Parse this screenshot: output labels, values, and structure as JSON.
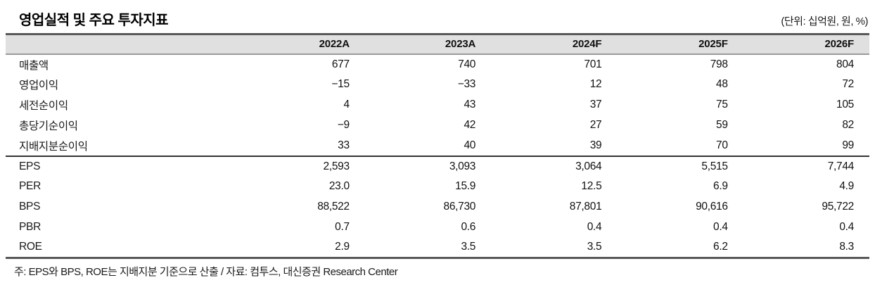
{
  "header": {
    "title": "영업실적 및 주요 투자지표",
    "unit_note": "(단위: 십억원, 원, %)"
  },
  "table": {
    "columns": [
      "2022A",
      "2023A",
      "2024F",
      "2025F",
      "2026F"
    ],
    "rows": [
      {
        "label": "매출액",
        "values": [
          "677",
          "740",
          "701",
          "798",
          "804"
        ]
      },
      {
        "label": "영업이익",
        "values": [
          "−15",
          "−33",
          "12",
          "48",
          "72"
        ]
      },
      {
        "label": "세전순이익",
        "values": [
          "4",
          "43",
          "37",
          "75",
          "105"
        ]
      },
      {
        "label": "총당기순이익",
        "values": [
          "−9",
          "42",
          "27",
          "59",
          "82"
        ]
      },
      {
        "label": "지배지분순이익",
        "values": [
          "33",
          "40",
          "39",
          "70",
          "99"
        ]
      },
      {
        "label": "EPS",
        "values": [
          "2,593",
          "3,093",
          "3,064",
          "5,515",
          "7,744"
        ]
      },
      {
        "label": "PER",
        "values": [
          "23.0",
          "15.9",
          "12.5",
          "6.9",
          "4.9"
        ]
      },
      {
        "label": "BPS",
        "values": [
          "88,522",
          "86,730",
          "87,801",
          "90,616",
          "95,722"
        ]
      },
      {
        "label": "PBR",
        "values": [
          "0.7",
          "0.6",
          "0.4",
          "0.4",
          "0.4"
        ]
      },
      {
        "label": "ROE",
        "values": [
          "2.9",
          "3.5",
          "3.5",
          "6.2",
          "8.3"
        ]
      }
    ]
  },
  "footer": {
    "note": "주: EPS와 BPS, ROE는 지배지분 기준으로 산출 / 자료: 컴투스, 대신증권 Research Center"
  },
  "colors": {
    "header_band": "#e0e0e0",
    "rule_heavy": "#595959",
    "rule_section": "#333333",
    "text": "#111111"
  }
}
